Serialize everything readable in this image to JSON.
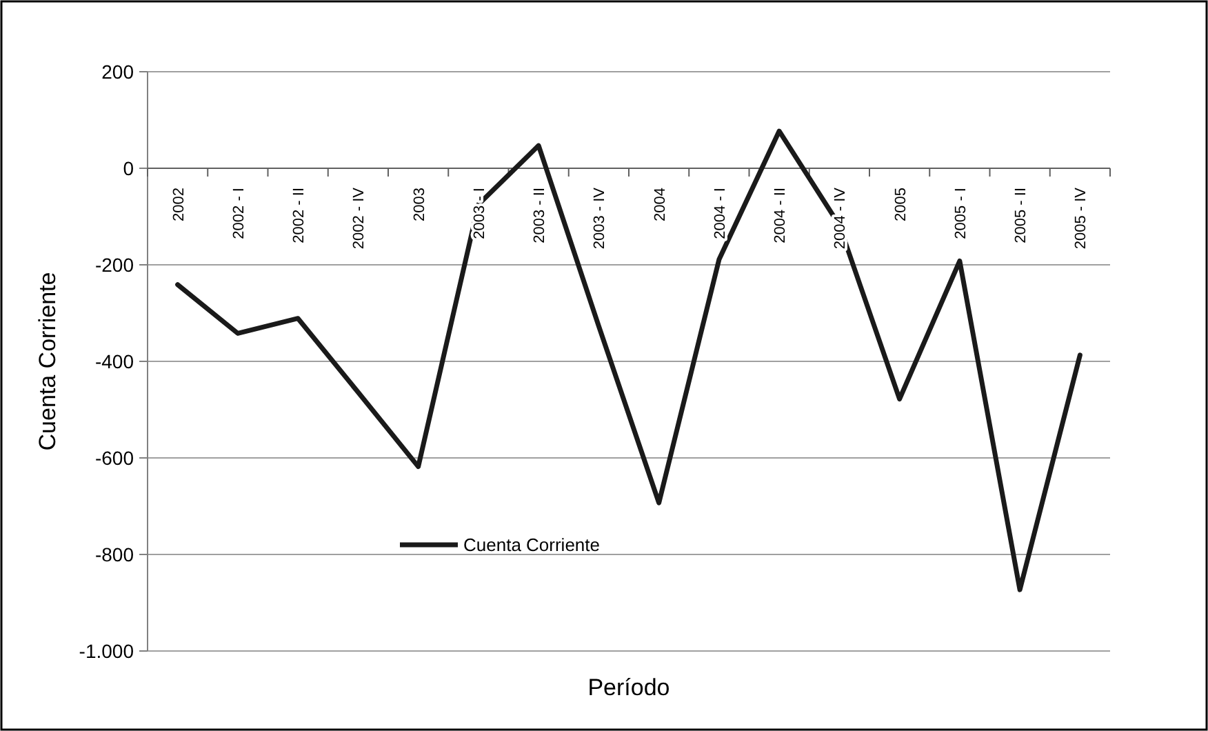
{
  "chart_data": {
    "type": "line",
    "xlabel": "Período",
    "ylabel": "Cuenta Corriente",
    "categories": [
      "2002",
      "2002 - I",
      "2002 - II",
      "2002 - IV",
      "2003",
      "2003 - I",
      "2003 - II",
      "2003 - IV",
      "2004",
      "2004 - I",
      "2004 - II",
      "2004 - IV",
      "2005",
      "2005 - I",
      "2005 - II",
      "2005 - IV"
    ],
    "series": [
      {
        "name": "Cuenta Corriente",
        "color": "#1a1a1a",
        "values": [
          -241,
          -342,
          -311,
          -464,
          -618,
          -75,
          47,
          -327,
          -693,
          -189,
          77,
          -118,
          -478,
          -192,
          -873,
          -387
        ]
      }
    ],
    "ylim": [
      -1000,
      200
    ],
    "yticks": [
      {
        "value": -1000,
        "label": "-1.000"
      },
      -800,
      -600,
      -400,
      -200,
      0,
      200
    ],
    "grid": "y",
    "legend": "bottom left",
    "marker": "none",
    "line_style": "solid"
  }
}
